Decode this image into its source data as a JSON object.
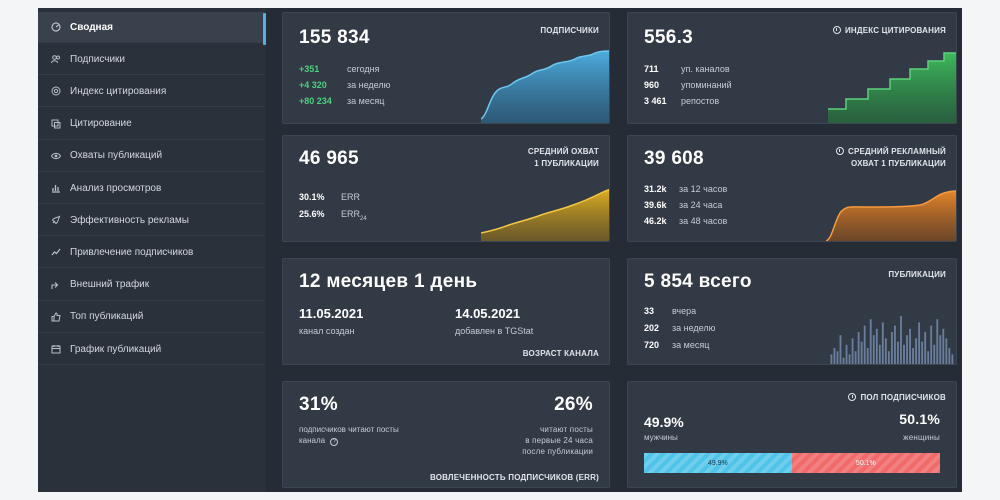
{
  "sidebar": {
    "items": [
      {
        "label": "Сводная",
        "icon": "dashboard-icon",
        "active": true
      },
      {
        "label": "Подписчики",
        "icon": "users-icon"
      },
      {
        "label": "Индекс цитирования",
        "icon": "at-icon"
      },
      {
        "label": "Цитирование",
        "icon": "quote-icon"
      },
      {
        "label": "Охваты публикаций",
        "icon": "eye-icon"
      },
      {
        "label": "Анализ просмотров",
        "icon": "bar-chart-icon"
      },
      {
        "label": "Эффективность рекламы",
        "icon": "rocket-icon"
      },
      {
        "label": "Привлечение подписчиков",
        "icon": "line-chart-icon"
      },
      {
        "label": "Внешний трафик",
        "icon": "external-icon"
      },
      {
        "label": "Топ публикаций",
        "icon": "thumbs-up-icon"
      },
      {
        "label": "График публикаций",
        "icon": "calendar-icon"
      }
    ]
  },
  "subscribers": {
    "title": "ПОДПИСЧИКИ",
    "total": "155 834",
    "rows": [
      {
        "value": "+351",
        "label": "сегодня"
      },
      {
        "value": "+4 320",
        "label": "за неделю"
      },
      {
        "value": "+80 234",
        "label": "за месяц"
      }
    ],
    "color": "#4fb3e6"
  },
  "citation": {
    "title": "ИНДЕКС ЦИТИРОВАНИЯ",
    "total": "556.3",
    "rows": [
      {
        "value": "711",
        "label": "уп. каналов"
      },
      {
        "value": "960",
        "label": "упоминаний"
      },
      {
        "value": "3 461",
        "label": "репостов"
      }
    ],
    "color": "#3fbf5e"
  },
  "reach": {
    "title_line1": "СРЕДНИЙ ОХВАТ",
    "title_line2": "1 ПУБЛИКАЦИИ",
    "total": "46 965",
    "err_value": "30.1%",
    "err_label": "ERR",
    "err24_value": "25.6%",
    "err24_label": "ERR",
    "err24_sub": "24",
    "color": "#e6b422"
  },
  "ad_reach": {
    "title_line1": "СРЕДНИЙ РЕКЛАМНЫЙ",
    "title_line2": "ОХВАТ 1 ПУБЛИКАЦИИ",
    "total": "39 608",
    "rows": [
      {
        "value": "31.2k",
        "label": "за 12 часов"
      },
      {
        "value": "39.6k",
        "label": "за 24 часа"
      },
      {
        "value": "46.2k",
        "label": "за 48 часов"
      }
    ],
    "color": "#f08a2a"
  },
  "age": {
    "title": "ВОЗРАСТ КАНАЛА",
    "total": "12 месяцев 1 день",
    "created_date": "11.05.2021",
    "created_label": "канал создан",
    "added_date": "14.05.2021",
    "added_label": "добавлен в TGStat"
  },
  "posts": {
    "title": "ПУБЛИКАЦИИ",
    "total": "5 854 всего",
    "rows": [
      {
        "value": "33",
        "label": "вчера"
      },
      {
        "value": "202",
        "label": "за неделю"
      },
      {
        "value": "720",
        "label": "за месяц"
      }
    ],
    "bars": [
      3,
      5,
      4,
      9,
      2,
      6,
      3,
      8,
      4,
      10,
      7,
      12,
      5,
      14,
      9,
      11,
      6,
      13,
      8,
      4,
      10,
      12,
      7,
      15,
      6,
      9,
      11,
      5,
      8,
      13,
      7,
      10,
      4,
      12,
      6,
      14,
      9,
      11,
      8,
      5,
      3
    ],
    "color": "#6b7f9c"
  },
  "engagement": {
    "title": "ВОВЛЕЧЕННОСТЬ ПОДПИСЧИКОВ (ERR)",
    "left_value": "31%",
    "left_line1": "подписчиков читают посты",
    "left_line2": "канала",
    "right_value": "26%",
    "right_line1": "читают посты",
    "right_line2": "в первые 24 часа",
    "right_line3": "после публикации"
  },
  "gender": {
    "title": "ПОЛ ПОДПИСЧИКОВ",
    "male_value": "49.9%",
    "male_label": "мужчины",
    "female_value": "50.1%",
    "female_label": "женщины",
    "male_share": 49.9,
    "male_color": "#4fc3e8",
    "female_color": "#f06a6a"
  }
}
